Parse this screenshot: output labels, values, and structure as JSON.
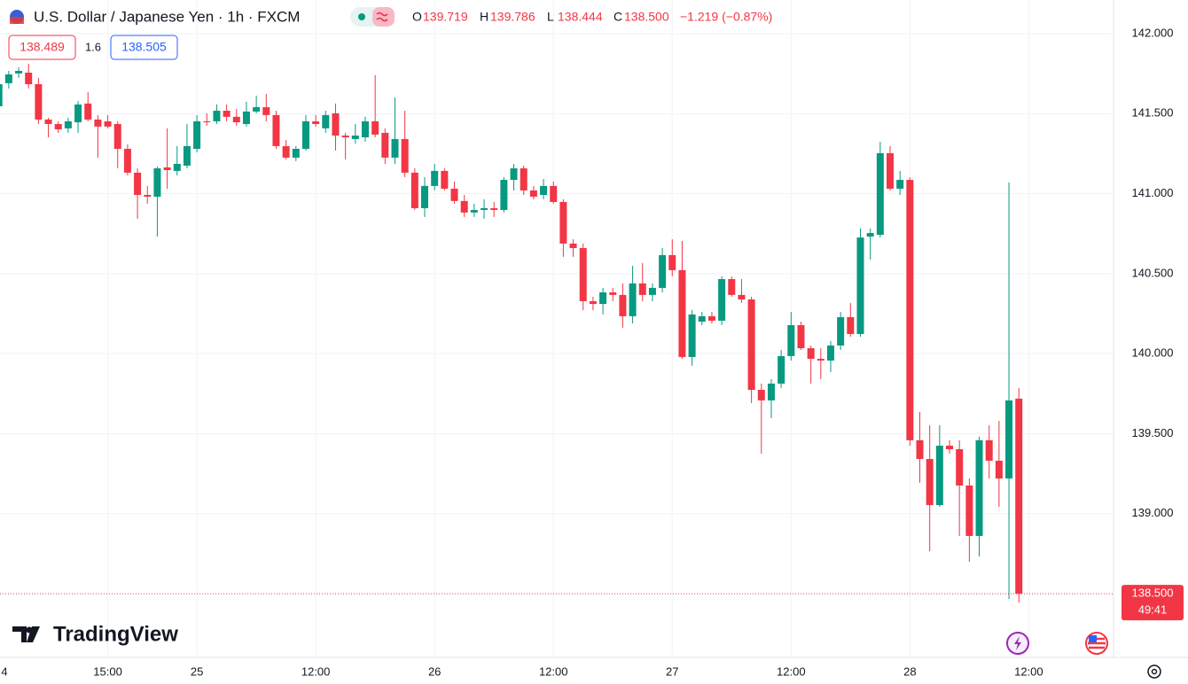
{
  "header": {
    "symbol": "U.S. Dollar / Japanese Yen · 1h · FXCM",
    "ohlc": [
      {
        "key": "O",
        "value": "139.719"
      },
      {
        "key": "H",
        "value": "139.786"
      },
      {
        "key": "L",
        "value": "138.444"
      },
      {
        "key": "C",
        "value": "138.500"
      }
    ],
    "change": "−1.219 (−0.87%)"
  },
  "quote": {
    "bid": "138.489",
    "spread": "1.6",
    "ask": "138.505"
  },
  "brand": "TradingView",
  "chart_data": {
    "type": "candlestick",
    "up_color": "#089981",
    "down_color": "#f23645",
    "grid": true,
    "last_price_label": "138.500",
    "countdown": "49:41",
    "ylim": [
      138.102,
      142.21
    ],
    "yticks": [
      {
        "value": 139,
        "label": "139.000"
      },
      {
        "value": 139.5,
        "label": "139.500"
      },
      {
        "value": 140,
        "label": "140.000"
      },
      {
        "value": 140.5,
        "label": "140.500"
      },
      {
        "value": 141,
        "label": "141.000"
      },
      {
        "value": 141.5,
        "label": "141.500"
      },
      {
        "value": 142,
        "label": "142.000"
      }
    ],
    "categories": [
      "4",
      null,
      null,
      null,
      null,
      null,
      null,
      null,
      null,
      null,
      null,
      "15:00",
      null,
      null,
      null,
      null,
      null,
      null,
      null,
      null,
      "25",
      null,
      null,
      null,
      null,
      null,
      null,
      null,
      null,
      null,
      null,
      null,
      "12:00",
      null,
      null,
      null,
      null,
      null,
      null,
      null,
      null,
      null,
      null,
      null,
      "26",
      null,
      null,
      null,
      null,
      null,
      null,
      null,
      null,
      null,
      null,
      null,
      "12:00",
      null,
      null,
      null,
      null,
      null,
      null,
      null,
      null,
      null,
      null,
      null,
      "27",
      null,
      null,
      null,
      null,
      null,
      null,
      null,
      null,
      null,
      null,
      null,
      "12:00",
      null,
      null,
      null,
      null,
      null,
      null,
      null,
      null,
      null,
      null,
      null,
      "28",
      null,
      null,
      null,
      null,
      null,
      null,
      null,
      null,
      null,
      null,
      null,
      "12:00"
    ],
    "open": [
      141.546,
      141.69,
      141.751,
      141.756,
      141.684,
      141.463,
      141.435,
      141.408,
      141.446,
      141.563,
      141.463,
      141.452,
      141.435,
      141.28,
      141.131,
      140.992,
      140.981,
      141.164,
      141.142,
      141.175,
      141.28,
      141.452,
      141.452,
      141.518,
      141.48,
      141.435,
      141.513,
      141.54,
      141.491,
      141.297,
      141.225,
      141.28,
      141.452,
      141.408,
      141.502,
      141.363,
      141.341,
      141.352,
      141.452,
      141.38,
      141.225,
      141.341,
      141.131,
      140.909,
      141.048,
      141.142,
      141.031,
      140.954,
      140.882,
      140.898,
      140.909,
      140.898,
      141.086,
      141.158,
      141.02,
      140.992,
      141.048,
      140.948,
      140.688,
      140.66,
      140.328,
      140.311,
      140.383,
      140.367,
      140.234,
      140.439,
      140.367,
      140.411,
      140.616,
      140.522,
      139.979,
      140.2,
      140.234,
      140.206,
      140.466,
      140.367,
      140.339,
      139.774,
      139.708,
      139.813,
      139.985,
      140.178,
      140.034,
      139.968,
      139.957,
      140.051,
      140.228,
      140.123,
      140.732,
      140.743,
      141.253,
      141.031,
      141.086,
      139.459,
      139.342,
      139.054,
      139.425,
      139.403,
      139.176,
      138.861,
      139.459,
      139.331,
      139.22,
      139.719,
      null
    ],
    "high": [
      141.723,
      141.767,
      141.79,
      141.812,
      141.723,
      141.474,
      141.452,
      141.474,
      141.579,
      141.635,
      141.491,
      141.491,
      141.452,
      141.308,
      141.158,
      141.048,
      141.169,
      141.408,
      141.297,
      141.435,
      141.491,
      141.502,
      141.557,
      141.557,
      141.529,
      141.574,
      141.612,
      141.623,
      141.518,
      141.336,
      141.297,
      141.491,
      141.491,
      141.518,
      141.563,
      141.38,
      141.435,
      141.48,
      141.74,
      141.408,
      141.601,
      141.518,
      141.158,
      141.103,
      141.186,
      141.158,
      141.075,
      140.992,
      140.937,
      140.965,
      140.948,
      141.103,
      141.186,
      141.175,
      141.048,
      141.092,
      141.075,
      140.965,
      140.715,
      140.688,
      140.356,
      140.411,
      140.411,
      140.439,
      140.549,
      140.566,
      140.439,
      140.66,
      140.715,
      140.704,
      140.272,
      140.261,
      140.261,
      140.483,
      140.483,
      140.466,
      140.356,
      139.813,
      139.841,
      140.023,
      140.261,
      140.2,
      140.051,
      140.034,
      140.079,
      140.261,
      140.317,
      140.782,
      140.782,
      141.324,
      141.297,
      141.142,
      141.103,
      139.636,
      139.553,
      139.553,
      139.459,
      139.459,
      139.22,
      139.481,
      139.553,
      139.58,
      141.07,
      139.786,
      null
    ],
    "low": [
      141.529,
      141.657,
      141.723,
      141.657,
      141.435,
      141.352,
      141.38,
      141.38,
      141.38,
      141.452,
      141.225,
      141.408,
      141.158,
      141.114,
      140.843,
      140.937,
      140.732,
      141.031,
      141.114,
      141.158,
      141.258,
      141.424,
      141.435,
      141.452,
      141.424,
      141.419,
      141.502,
      141.452,
      141.28,
      141.214,
      141.203,
      141.269,
      141.419,
      141.38,
      141.269,
      141.214,
      141.313,
      141.324,
      141.352,
      141.186,
      141.186,
      141.103,
      140.898,
      140.854,
      141.02,
      141.02,
      140.937,
      140.854,
      140.854,
      140.843,
      140.854,
      140.882,
      141.02,
      140.992,
      140.965,
      140.965,
      140.937,
      140.605,
      140.605,
      140.272,
      140.272,
      140.245,
      140.328,
      140.162,
      140.189,
      140.328,
      140.328,
      140.383,
      140.483,
      139.968,
      139.924,
      140.178,
      140.189,
      140.178,
      140.356,
      140.317,
      139.691,
      139.375,
      139.597,
      139.785,
      139.957,
      140.023,
      139.813,
      139.841,
      139.885,
      140.023,
      140.106,
      140.106,
      140.588,
      140.726,
      141.02,
      140.992,
      139.425,
      139.193,
      138.766,
      139.043,
      139.375,
      138.861,
      138.7,
      138.733,
      139.22,
      139.043,
      138.467,
      138.444,
      null
    ],
    "close": [
      141.684,
      141.745,
      141.767,
      141.684,
      141.463,
      141.435,
      141.402,
      141.452,
      141.557,
      141.463,
      141.419,
      141.419,
      141.28,
      141.131,
      140.992,
      140.981,
      141.158,
      141.147,
      141.186,
      141.297,
      141.452,
      141.446,
      141.518,
      141.48,
      141.446,
      141.513,
      141.54,
      141.491,
      141.297,
      141.225,
      141.28,
      141.452,
      141.435,
      141.491,
      141.363,
      141.352,
      141.363,
      141.452,
      141.369,
      141.225,
      141.341,
      141.131,
      140.909,
      141.048,
      141.142,
      141.031,
      140.954,
      140.882,
      140.898,
      140.909,
      140.898,
      141.086,
      141.158,
      141.02,
      140.981,
      141.048,
      140.948,
      140.688,
      140.66,
      140.328,
      140.311,
      140.383,
      140.367,
      140.234,
      140.439,
      140.367,
      140.411,
      140.616,
      140.522,
      139.979,
      140.245,
      140.234,
      140.206,
      140.466,
      140.367,
      140.339,
      139.774,
      139.708,
      139.813,
      139.985,
      140.178,
      140.034,
      139.968,
      139.957,
      140.051,
      140.228,
      140.123,
      140.726,
      140.754,
      141.253,
      141.031,
      141.086,
      139.459,
      139.342,
      139.054,
      139.425,
      139.403,
      139.176,
      138.861,
      139.459,
      139.331,
      139.22,
      139.708,
      138.5,
      null
    ]
  }
}
